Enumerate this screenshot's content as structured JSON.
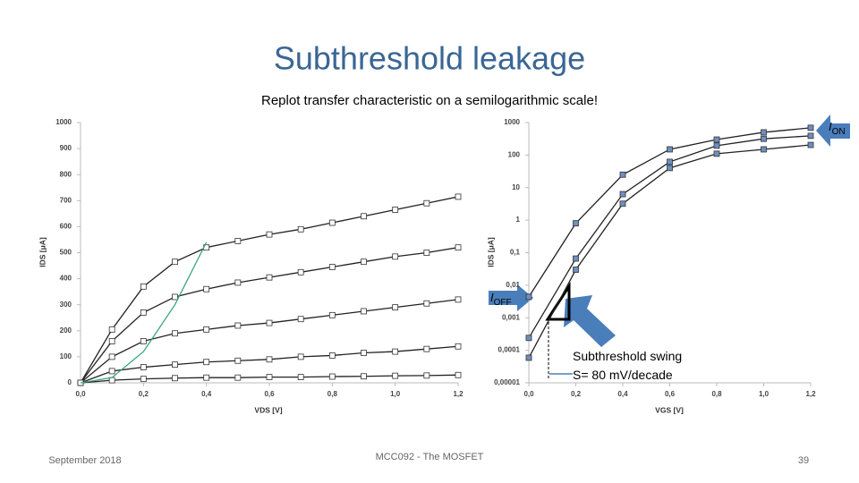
{
  "slide": {
    "title": "Subthreshold leakage",
    "subtitle": "Replot transfer characteristic on a semilogarithmic scale!",
    "footer_left": "September 2018",
    "footer_center": "MCC092 - The MOSFET",
    "page_number": "39"
  },
  "chart_data": [
    {
      "type": "line",
      "x_label": "VDS [V]",
      "y_label": "IDS [μA]",
      "x": [
        0,
        0.1,
        0.2,
        0.3,
        0.4,
        0.5,
        0.6,
        0.7,
        0.8,
        0.9,
        1.0,
        1.1,
        1.2
      ],
      "xlim": [
        0,
        1.2
      ],
      "xticks": [
        {
          "value": 0,
          "label": "0,0"
        },
        {
          "value": 0.2,
          "label": "0,2"
        },
        {
          "value": 0.4,
          "label": "0,4"
        },
        {
          "value": 0.6,
          "label": "0,6"
        },
        {
          "value": 0.8,
          "label": "0,8"
        },
        {
          "value": 1.0,
          "label": "1,0"
        },
        {
          "value": 1.2,
          "label": "1,2"
        }
      ],
      "ylim": [
        0,
        1000
      ],
      "yticks": [
        0,
        100,
        200,
        300,
        400,
        500,
        600,
        700,
        800,
        900,
        1000
      ],
      "log_y": false,
      "series": [
        {
          "color": "#222222",
          "marker": "square",
          "marker_fill": "#ffffff",
          "values": [
            0,
            205,
            370,
            465,
            520,
            545,
            570,
            590,
            615,
            640,
            665,
            690,
            715
          ]
        },
        {
          "color": "#222222",
          "marker": "square",
          "marker_fill": "#ffffff",
          "values": [
            0,
            160,
            270,
            330,
            360,
            385,
            405,
            425,
            445,
            465,
            485,
            500,
            520
          ]
        },
        {
          "color": "#222222",
          "marker": "square",
          "marker_fill": "#ffffff",
          "values": [
            0,
            100,
            160,
            190,
            205,
            220,
            230,
            245,
            260,
            275,
            290,
            305,
            320
          ]
        },
        {
          "color": "#222222",
          "marker": "square",
          "marker_fill": "#ffffff",
          "values": [
            0,
            45,
            60,
            70,
            80,
            85,
            90,
            100,
            105,
            115,
            120,
            130,
            140
          ]
        },
        {
          "color": "#222222",
          "marker": "square",
          "marker_fill": "#ffffff",
          "values": [
            0,
            10,
            15,
            18,
            20,
            20,
            22,
            22,
            24,
            25,
            27,
            28,
            30
          ]
        },
        {
          "color": "#3aa57a",
          "values": [
            0,
            20,
            120,
            300,
            540,
            null,
            null,
            null,
            null,
            null,
            null,
            null,
            null
          ]
        }
      ]
    },
    {
      "type": "line",
      "x_label": "VGS [V]",
      "y_label": "IDS [μA]",
      "x": [
        0,
        0.2,
        0.4,
        0.6,
        0.8,
        1.0,
        1.2
      ],
      "xlim": [
        0,
        1.2
      ],
      "xticks": [
        {
          "value": 0,
          "label": "0,0"
        },
        {
          "value": 0.2,
          "label": "0,2"
        },
        {
          "value": 0.4,
          "label": "0,4"
        },
        {
          "value": 0.6,
          "label": "0,6"
        },
        {
          "value": 0.8,
          "label": "0,8"
        },
        {
          "value": 1.0,
          "label": "1,0"
        },
        {
          "value": 1.2,
          "label": "1,2"
        }
      ],
      "ylim": [
        1e-05,
        1000
      ],
      "yticks": [
        {
          "value": 1e-05,
          "label": "0,00001"
        },
        {
          "value": 0.0001,
          "label": "0,0001"
        },
        {
          "value": 0.001,
          "label": "0,001"
        },
        {
          "value": 0.01,
          "label": "0,01"
        },
        {
          "value": 0.1,
          "label": "0,1"
        },
        1,
        10,
        100,
        1000
      ],
      "log_y": true,
      "series": [
        {
          "color": "#222222",
          "marker": "square",
          "marker_fill": "#6f8fbf",
          "values": [
            0.0044,
            0.8,
            25,
            150,
            300,
            500,
            690
          ]
        },
        {
          "color": "#222222",
          "marker": "square",
          "marker_fill": "#6f8fbf",
          "values": [
            0.00024,
            0.066,
            6.3,
            62,
            195,
            316,
            390
          ]
        },
        {
          "color": "#222222",
          "marker": "square",
          "marker_fill": "#6f8fbf",
          "values": [
            5.9e-05,
            0.03,
            3.2,
            40,
            110,
            150,
            205
          ]
        }
      ],
      "annotations": [
        {
          "text": "I",
          "sub": "ON"
        },
        {
          "text": "I",
          "sub": "OFF"
        },
        {
          "text": "Subthreshold swing"
        },
        {
          "text": "S= 80 mV/decade"
        }
      ]
    }
  ]
}
